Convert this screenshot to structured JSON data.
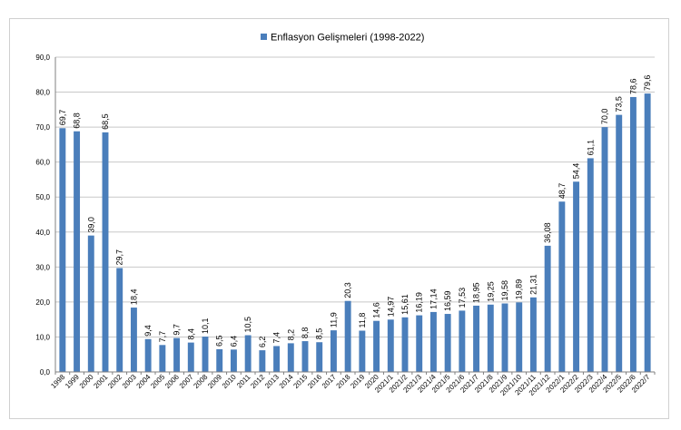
{
  "chart_data": {
    "type": "bar",
    "title": "Enflasyon Gelişmeleri (1998-2022)",
    "legend": {
      "placement": "top-center",
      "label": "Enflasyon Gelişmeleri (1998-2022)"
    },
    "grid": true,
    "ylim": [
      0,
      90
    ],
    "ytick_labels": [
      "0,0",
      "10,0",
      "20,0",
      "30,0",
      "40,0",
      "50,0",
      "60,0",
      "70,0",
      "80,0",
      "90,0"
    ],
    "bar_color": "#4a7ebb",
    "categories": [
      "1998",
      "1999",
      "2000",
      "2001",
      "2002",
      "2003",
      "2004",
      "2005",
      "2006",
      "2007",
      "2008",
      "2009",
      "2010",
      "2011",
      "2012",
      "2013",
      "2014",
      "2015",
      "2016",
      "2017",
      "2018",
      "2019",
      "2020",
      "2021/1",
      "2021/2",
      "2021/3",
      "2021/4",
      "2021/5",
      "2021/6",
      "2021/7",
      "2021/8",
      "2021/9",
      "2021/10",
      "2021/11",
      "2021/12",
      "2022/1",
      "2022/2",
      "2022/3",
      "2022/4",
      "2022/5",
      "2022/6",
      "2022/7"
    ],
    "values": [
      69.7,
      68.8,
      39.0,
      68.5,
      29.7,
      18.4,
      9.4,
      7.7,
      9.7,
      8.4,
      10.1,
      6.5,
      6.4,
      10.5,
      6.2,
      7.4,
      8.2,
      8.8,
      8.5,
      11.9,
      20.3,
      11.8,
      14.6,
      14.97,
      15.61,
      16.19,
      17.14,
      16.59,
      17.53,
      18.95,
      19.25,
      19.58,
      19.89,
      21.31,
      36.08,
      48.7,
      54.4,
      61.1,
      70.0,
      73.5,
      78.6,
      79.6
    ],
    "value_labels": [
      "69,7",
      "68,8",
      "39,0",
      "68,5",
      "29,7",
      "18,4",
      "9,4",
      "7,7",
      "9,7",
      "8,4",
      "10,1",
      "6,5",
      "6,4",
      "10,5",
      "6,2",
      "7,4",
      "8,2",
      "8,8",
      "8,5",
      "11,9",
      "20,3",
      "11,8",
      "14,6",
      "14,97",
      "15,61",
      "16,19",
      "17,14",
      "16,59",
      "17,53",
      "18,95",
      "19,25",
      "19,58",
      "19,89",
      "21,31",
      "36,08",
      "48,7",
      "54,4",
      "61,1",
      "70,0",
      "73,5",
      "78,6",
      "79,6"
    ]
  }
}
